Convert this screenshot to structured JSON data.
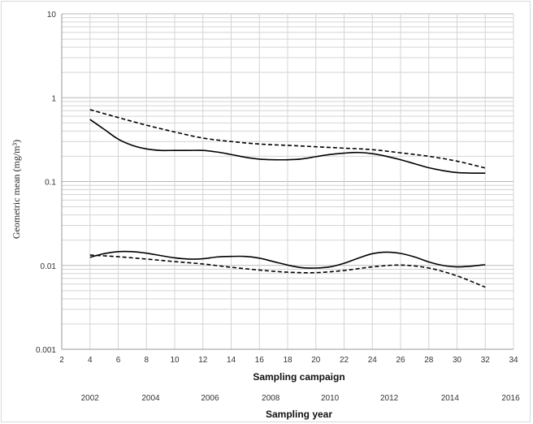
{
  "chart_data": {
    "type": "line",
    "ylabel": "Geometric mean (mg/m³)",
    "xlabel": "Sampling campaign",
    "x2label": "Sampling year",
    "xlim": [
      2,
      34
    ],
    "x_ticks": [
      2,
      4,
      6,
      8,
      10,
      12,
      14,
      16,
      18,
      20,
      22,
      24,
      26,
      28,
      30,
      32,
      34
    ],
    "y_scale": "log",
    "ylim": [
      0.001,
      10
    ],
    "y_ticks": [
      {
        "value": 10,
        "label": "10"
      },
      {
        "value": 1,
        "label": "1"
      },
      {
        "value": 0.1,
        "label": "0.1"
      },
      {
        "value": 0.01,
        "label": "0.01"
      },
      {
        "value": 0.001,
        "label": "0.001"
      }
    ],
    "year_ticks": [
      {
        "x": 4,
        "label": "2002"
      },
      {
        "x": 8.3,
        "label": "2004"
      },
      {
        "x": 12.5,
        "label": "2006"
      },
      {
        "x": 16.8,
        "label": "2008"
      },
      {
        "x": 21,
        "label": "2010"
      },
      {
        "x": 25.2,
        "label": "2012"
      },
      {
        "x": 29.5,
        "label": "2014"
      },
      {
        "x": 33.8,
        "label": "2016"
      }
    ],
    "grid": true,
    "series": [
      {
        "style": "solid",
        "x": [
          4,
          5,
          6,
          7,
          8,
          9,
          10,
          11,
          12,
          13,
          14,
          15,
          16,
          17,
          18,
          19,
          20,
          21,
          22,
          23,
          24,
          25,
          26,
          27,
          28,
          29,
          30,
          31,
          32
        ],
        "y": [
          0.55,
          0.42,
          0.32,
          0.27,
          0.245,
          0.235,
          0.235,
          0.235,
          0.235,
          0.225,
          0.21,
          0.195,
          0.185,
          0.182,
          0.182,
          0.186,
          0.198,
          0.21,
          0.218,
          0.222,
          0.215,
          0.2,
          0.182,
          0.163,
          0.146,
          0.135,
          0.128,
          0.126,
          0.126
        ]
      },
      {
        "style": "dashed",
        "x": [
          4,
          6,
          8,
          10,
          12,
          14,
          16,
          18,
          20,
          22,
          24,
          26,
          28,
          30,
          32
        ],
        "y": [
          0.72,
          0.58,
          0.47,
          0.39,
          0.33,
          0.3,
          0.28,
          0.27,
          0.26,
          0.25,
          0.24,
          0.22,
          0.2,
          0.175,
          0.145
        ]
      },
      {
        "style": "solid",
        "x": [
          4,
          5,
          6,
          7,
          8,
          9,
          10,
          11,
          12,
          13,
          14,
          15,
          16,
          17,
          18,
          19,
          20,
          21,
          22,
          23,
          24,
          25,
          26,
          27,
          28,
          29,
          30,
          31,
          32
        ],
        "y": [
          0.0125,
          0.0138,
          0.0146,
          0.0146,
          0.014,
          0.0131,
          0.0123,
          0.0119,
          0.012,
          0.0126,
          0.0128,
          0.0128,
          0.0122,
          0.0111,
          0.0101,
          0.0094,
          0.0093,
          0.0096,
          0.0106,
          0.0122,
          0.0138,
          0.0144,
          0.0139,
          0.0126,
          0.011,
          0.01,
          0.0096,
          0.0098,
          0.0102
        ]
      },
      {
        "style": "dashed",
        "x": [
          4,
          6,
          8,
          10,
          12,
          14,
          16,
          18,
          20,
          22,
          24,
          26,
          28,
          30,
          32
        ],
        "y": [
          0.0133,
          0.0127,
          0.0119,
          0.0111,
          0.0104,
          0.0095,
          0.0088,
          0.0083,
          0.0082,
          0.0087,
          0.0096,
          0.0101,
          0.0093,
          0.0075,
          0.0055
        ]
      }
    ]
  }
}
